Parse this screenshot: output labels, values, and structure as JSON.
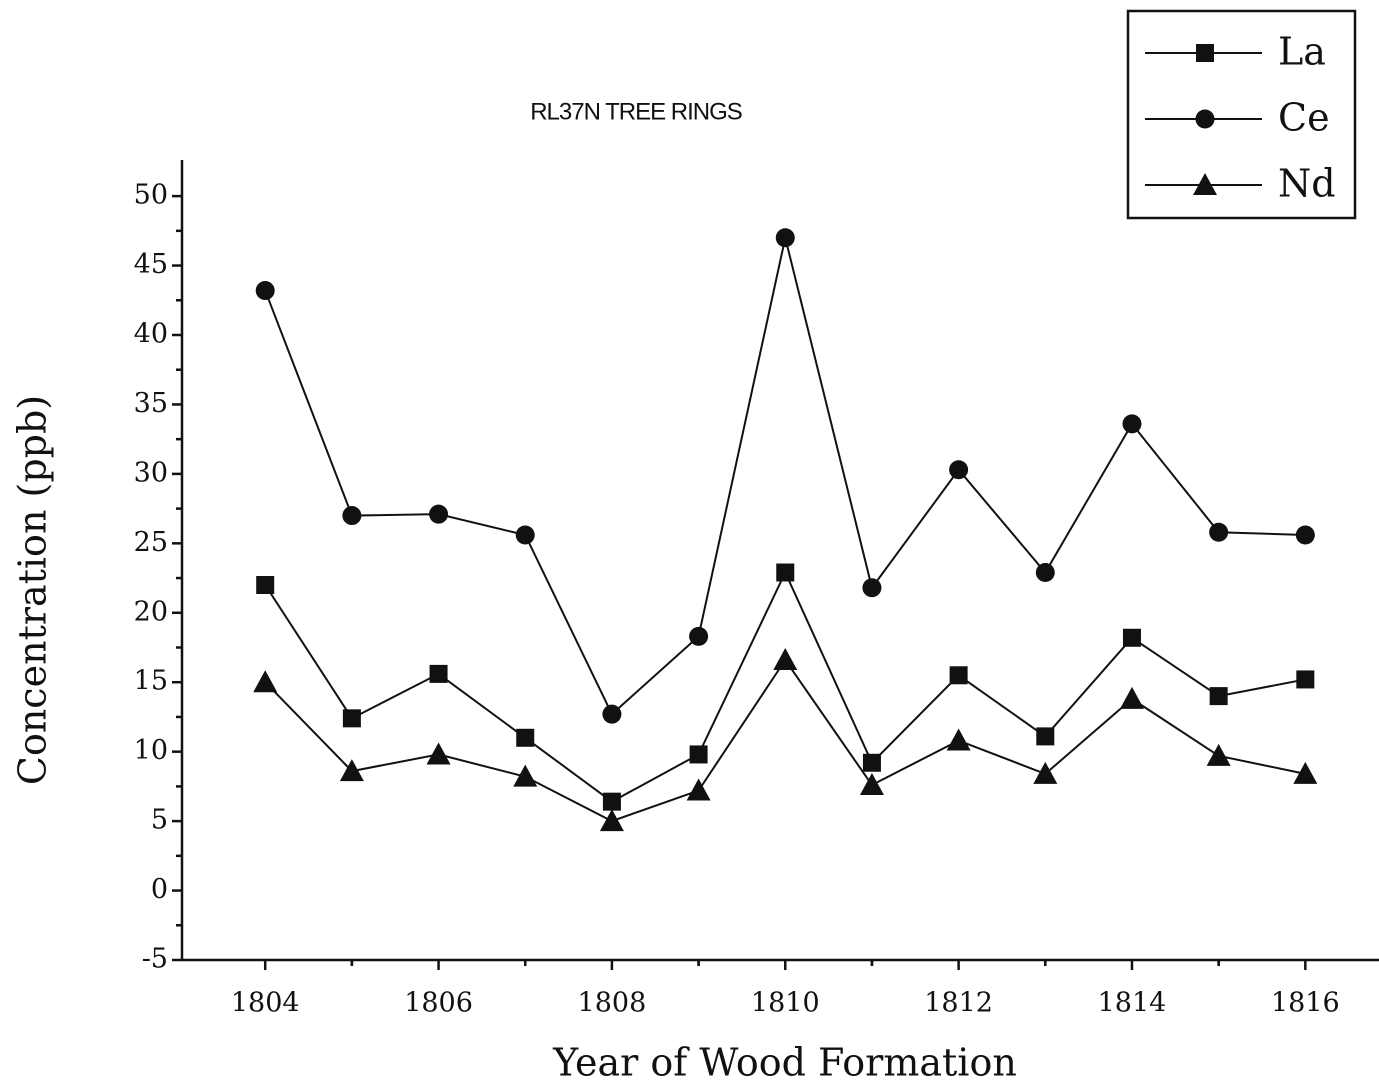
{
  "chart_data": {
    "type": "line",
    "title": "RL37N TREE RINGS",
    "x_label": "Year of Wood Formation",
    "y_label": "Concentration (ppb)",
    "x": [
      1804,
      1805,
      1806,
      1807,
      1808,
      1809,
      1810,
      1811,
      1812,
      1813,
      1814,
      1815,
      1816
    ],
    "series": [
      {
        "name": "La",
        "color": "#111111",
        "marker": "square",
        "values": [
          22,
          12.4,
          15.6,
          11,
          6.4,
          9.8,
          22.9,
          9.2,
          15.5,
          11.1,
          18.2,
          14,
          15.2
        ]
      },
      {
        "name": "Ce",
        "color": "#111111",
        "marker": "circle",
        "values": [
          43.2,
          27,
          27.1,
          25.6,
          12.7,
          18.3,
          47,
          21.8,
          30.3,
          22.9,
          33.6,
          25.8,
          25.6
        ]
      },
      {
        "name": "Nd",
        "color": "#111111",
        "marker": "triangle",
        "values": [
          15,
          8.6,
          9.8,
          8.2,
          5,
          7.2,
          16.6,
          7.6,
          10.8,
          8.4,
          13.8,
          9.7,
          8.4
        ]
      }
    ],
    "xlim": [
      1803.04,
      1816.85
    ],
    "ylim": [
      -5,
      52.6
    ],
    "xticks": [
      1804,
      1806,
      1808,
      1810,
      1812,
      1814,
      1816
    ],
    "yticks": [
      -5,
      0,
      5,
      10,
      15,
      20,
      25,
      30,
      35,
      40,
      45,
      50
    ],
    "legend": "upper right"
  }
}
